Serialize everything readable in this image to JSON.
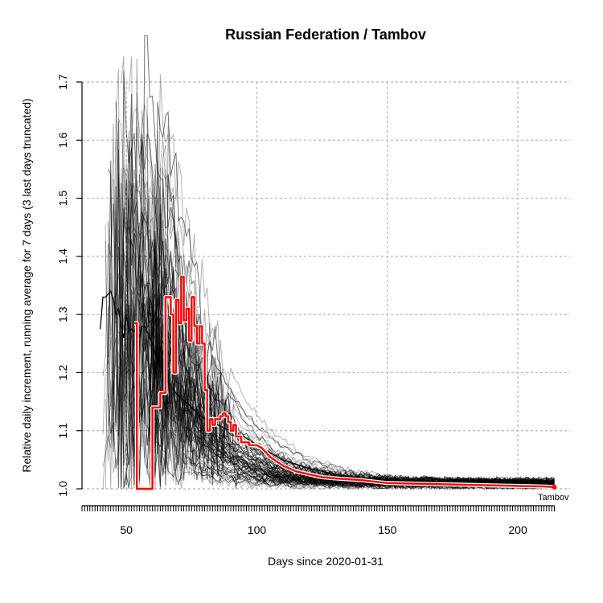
{
  "chart_data": {
    "type": "line",
    "title": "Russian Federation / Tambov",
    "xlabel": "Days since 2020-01-31",
    "ylabel": "Relative daily increment, running average for 7 days (3 last days truncated)",
    "xlim": [
      33,
      220
    ],
    "ylim": [
      1.0,
      1.7
    ],
    "x_ticks": [
      50,
      100,
      150,
      200
    ],
    "y_ticks": [
      1.0,
      1.1,
      1.2,
      1.3,
      1.4,
      1.5,
      1.6,
      1.7
    ],
    "y_tick_labels": [
      "1.0",
      "1.1",
      "1.2",
      "1.3",
      "1.4",
      "1.5",
      "1.6",
      "1.7"
    ],
    "grid": true,
    "annotations": [
      {
        "text": "Tambov",
        "x": 213,
        "y": 1.003
      }
    ],
    "colors": {
      "highlight": "#ff0000",
      "highlight_outline": "#ffffff",
      "background_series": "#000000",
      "country_series": "#000000",
      "grid": "#bdbdbd"
    },
    "highlight_series": {
      "x": [
        53,
        54,
        55,
        56,
        57,
        58,
        59,
        60,
        61,
        62,
        63,
        64,
        65,
        66,
        67,
        68,
        69,
        70,
        71,
        72,
        73,
        74,
        75,
        76,
        77,
        78,
        79,
        80,
        81,
        82,
        83,
        84,
        85,
        86,
        87,
        88,
        89,
        90,
        91,
        92,
        93,
        94,
        95,
        96,
        97,
        98,
        99,
        100,
        102,
        105,
        110,
        115,
        120,
        125,
        130,
        140,
        150,
        160,
        170,
        180,
        190,
        200,
        210,
        214
      ],
      "y": [
        1.285,
        1.0,
        1.0,
        1.0,
        1.0,
        1.0,
        1.0,
        1.14,
        1.14,
        1.14,
        1.165,
        1.165,
        1.33,
        1.33,
        1.3,
        1.2,
        1.325,
        1.285,
        1.365,
        1.29,
        1.31,
        1.255,
        1.33,
        1.28,
        1.25,
        1.28,
        1.25,
        1.17,
        1.1,
        1.12,
        1.11,
        1.12,
        1.12,
        1.125,
        1.13,
        1.125,
        1.115,
        1.1,
        1.11,
        1.09,
        1.09,
        1.08,
        1.08,
        1.08,
        1.075,
        1.075,
        1.075,
        1.075,
        1.07,
        1.055,
        1.04,
        1.03,
        1.025,
        1.02,
        1.018,
        1.015,
        1.01,
        1.009,
        1.008,
        1.007,
        1.006,
        1.005,
        1.004,
        1.003
      ]
    },
    "country_series": {
      "x": [
        40,
        41,
        42,
        43,
        44,
        45,
        46,
        47,
        48,
        49,
        50,
        51,
        52,
        53,
        54,
        55,
        56,
        57,
        58,
        60,
        62,
        65,
        68,
        70,
        75,
        80,
        85,
        90,
        95,
        100,
        110,
        120,
        130,
        140,
        150,
        160,
        170,
        180,
        190,
        200,
        210,
        214
      ],
      "y": [
        1.275,
        1.33,
        1.33,
        1.335,
        1.34,
        1.325,
        1.3,
        1.31,
        1.28,
        1.26,
        1.3,
        1.27,
        1.275,
        1.27,
        1.28,
        1.26,
        1.28,
        1.28,
        1.27,
        1.25,
        1.22,
        1.19,
        1.17,
        1.16,
        1.14,
        1.12,
        1.11,
        1.1,
        1.09,
        1.075,
        1.05,
        1.035,
        1.025,
        1.018,
        1.014,
        1.011,
        1.009,
        1.008,
        1.007,
        1.006,
        1.005,
        1.005
      ]
    }
  }
}
